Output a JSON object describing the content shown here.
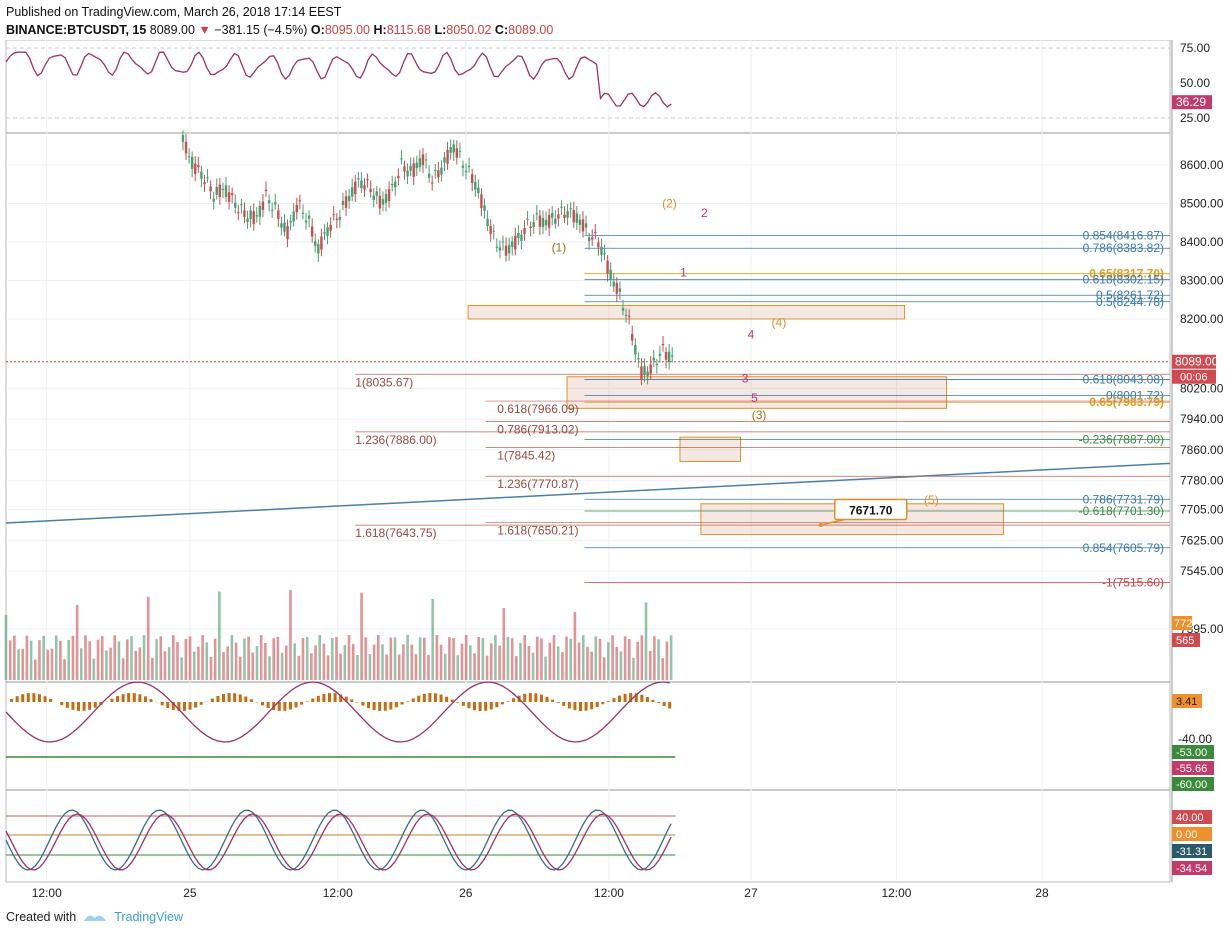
{
  "header": {
    "published": "Published on TradingView.com, March 26, 2018 17:14 EEST",
    "symbol": "BINANCE:BTCUSDT, 15",
    "last": "8089.00",
    "change": "−381.15 (−4.5%)",
    "o_label": "O:",
    "o": "8095.00",
    "h_label": "H:",
    "h": "8115.68",
    "l_label": "L:",
    "l": "8050.02",
    "c_label": "C:",
    "c": "8089.00"
  },
  "footer": {
    "created_with": "Created with",
    "brand": "TradingView"
  },
  "colors": {
    "up": "#45a070",
    "down": "#d04a50",
    "rsi": "#a0306a",
    "fib_blue": "#3a78b0",
    "fib_gold": "#e0a020",
    "wave_orange": "#e0902a",
    "wave_pink": "#c8307a",
    "trendline": "#4a7fa8"
  },
  "chart_data": {
    "type": "candlestick",
    "x_ticks": [
      "12:00",
      "25",
      "12:00",
      "26",
      "12:00",
      "27",
      "12:00",
      "28"
    ],
    "y_ticks": [
      "8600.00",
      "8500.00",
      "8400.00",
      "8300.00",
      "8200.00",
      "8020.00",
      "7940.00",
      "7860.00",
      "7780.00",
      "7705.00",
      "7625.00",
      "7545.00",
      "7395.00"
    ],
    "current_price": "8089.00",
    "countdown": "00:06",
    "wave_labels": [
      {
        "text": "(1)",
        "x": 8375,
        "t": 0.475
      },
      {
        "text": "(2)",
        "x": 8490,
        "t": 0.57
      },
      {
        "text": "2",
        "x": 8465,
        "t": 0.6
      },
      {
        "text": "1",
        "x": 8310,
        "t": 0.582
      },
      {
        "text": "(4)",
        "x": 8180,
        "t": 0.664
      },
      {
        "text": "4",
        "x": 8150,
        "t": 0.64
      },
      {
        "text": "3",
        "x": 8035,
        "t": 0.635
      },
      {
        "text": "5",
        "x": 7985,
        "t": 0.643
      },
      {
        "text": "(3)",
        "x": 7940,
        "t": 0.647
      },
      {
        "text": "(5)",
        "x": 7720,
        "t": 0.795
      }
    ],
    "fib_right": [
      {
        "text": "0.854(8416.87)",
        "v": 8416.87,
        "color": "#3a78b0"
      },
      {
        "text": "0.786(8383.82)",
        "v": 8383.82,
        "color": "#3a78b0"
      },
      {
        "text": "0.65(8317.70)",
        "v": 8317.7,
        "color": "#e0a020",
        "bold": true
      },
      {
        "text": "0.618(8302.15)",
        "v": 8302.15,
        "color": "#3a78b0"
      },
      {
        "text": "0.5(8261.72)",
        "v": 8261.72,
        "color": "#3a78b0"
      },
      {
        "text": "0.5(8244.78)",
        "v": 8244.78,
        "color": "#3a78b0"
      },
      {
        "text": "0.618(8043.08)",
        "v": 8043.08,
        "color": "#3a78b0"
      },
      {
        "text": "0(8001.72)",
        "v": 8001.72,
        "color": "#3a78b0"
      },
      {
        "text": "0.65(7983.79)",
        "v": 7983.79,
        "color": "#e0a020",
        "bold": true
      },
      {
        "text": "-0.236(7887.00)",
        "v": 7887.0,
        "color": "#3a8a4a"
      },
      {
        "text": "0.786(7731.79)",
        "v": 7731.79,
        "color": "#3a78b0"
      },
      {
        "text": "-0.618(7701.30)",
        "v": 7701.3,
        "color": "#3a8a4a"
      },
      {
        "text": "0.854(7605.79)",
        "v": 7605.79,
        "color": "#3a78b0"
      },
      {
        "text": "-1(7515.60)",
        "v": 7515.6,
        "color": "#d04040"
      }
    ],
    "fib_left": [
      {
        "text": "1(8035.67)",
        "v": 8035.67
      },
      {
        "text": "1.236(7886.00)",
        "v": 7886.0
      },
      {
        "text": "1.618(7643.75)",
        "v": 7643.75
      }
    ],
    "fib_mid": [
      {
        "text": "0.618(7966.09)",
        "v": 7966.09
      },
      {
        "text": "0.786(7913.02)",
        "v": 7913.02
      },
      {
        "text": "1(7845.42)",
        "v": 7845.42
      },
      {
        "text": "1.236(7770.87)",
        "v": 7770.87
      },
      {
        "text": "1.618(7650.21)",
        "v": 7650.21
      }
    ],
    "target_label": "7671.70",
    "rsi": {
      "ticks": [
        "75.00",
        "50.00",
        "25.00"
      ],
      "value": "36.29"
    },
    "volume": {
      "values": [
        "772",
        "565"
      ]
    },
    "macd": {
      "value": "3.41",
      "tick": "-40.00",
      "values": [
        "-53.00",
        "-55.66",
        "-60.00"
      ]
    },
    "stoch": {
      "values": [
        "40.00",
        "0.00",
        "-31.31",
        "-34.54"
      ]
    }
  }
}
